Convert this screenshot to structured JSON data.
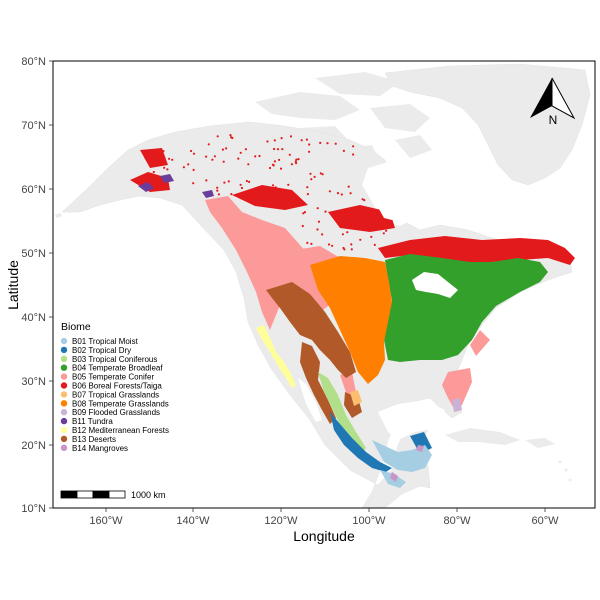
{
  "map": {
    "axes": {
      "x_label": "Longitude",
      "y_label": "Latitude",
      "x_ticks": [
        "160°W",
        "140°W",
        "120°W",
        "100°W",
        "80°W",
        "60°W"
      ],
      "y_ticks": [
        "80°N",
        "70°N",
        "60°N",
        "50°N",
        "40°N",
        "30°N",
        "20°N",
        "10°N"
      ]
    },
    "legend": {
      "title": "Biome",
      "placement": "left-center",
      "items": [
        {
          "label": "B01 Tropical Moist",
          "color": "#a6cee3"
        },
        {
          "label": "B02 Tropical Dry",
          "color": "#1f78b4"
        },
        {
          "label": "B03 Tropical Coniferous",
          "color": "#b2df8a"
        },
        {
          "label": "B04 Temperate Broadleaf",
          "color": "#33a02c"
        },
        {
          "label": "B05 Temperate Conifer",
          "color": "#fb9a99"
        },
        {
          "label": "B06 Boreal Forests/Taiga",
          "color": "#e31a1c"
        },
        {
          "label": "B07 Tropical Grasslands",
          "color": "#fdbf6f"
        },
        {
          "label": "B08 Temperate Grasslands",
          "color": "#ff7f00"
        },
        {
          "label": "B09 Flooded Grasslands",
          "color": "#cab2d6"
        },
        {
          "label": "B11 Tundra",
          "color": "#6a3d9a"
        },
        {
          "label": "B12 Mediterranean Forests",
          "color": "#ffff99"
        },
        {
          "label": "B13 Deserts",
          "color": "#b15928"
        },
        {
          "label": "B14 Mangroves",
          "color": "#c994c7"
        }
      ]
    },
    "scale_bar": {
      "label": "1000 km"
    },
    "north_arrow": {
      "label": "N",
      "icon": "north-arrow-icon"
    },
    "colors": {
      "land": "#ebebeb",
      "panel_border": "#000000"
    }
  }
}
